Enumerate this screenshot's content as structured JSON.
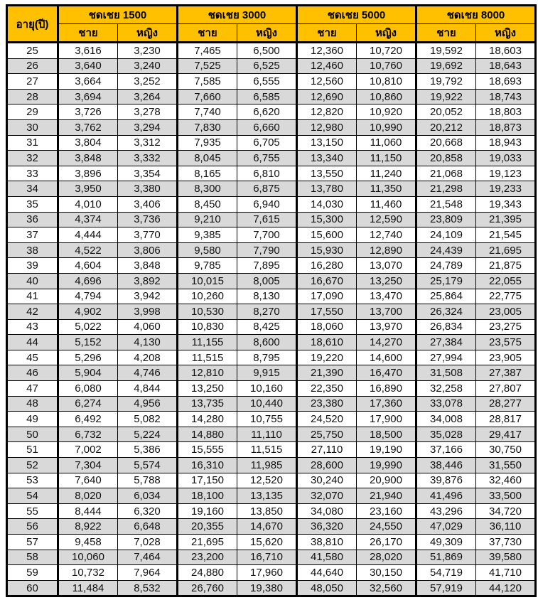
{
  "table": {
    "age_header": "อายุ(ปี)",
    "groups": [
      "ชดเชย 1500",
      "ชดเชย 3000",
      "ชดเชย 5000",
      "ชดเชย 8000"
    ],
    "sub_headers": [
      "ชาย",
      "หญิง"
    ],
    "header_color": "#FFC000",
    "alt_row_color": "#D9D9D9",
    "rows": [
      [
        "25",
        "3,616",
        "3,230",
        "7,465",
        "6,500",
        "12,360",
        "10,720",
        "19,592",
        "18,603"
      ],
      [
        "26",
        "3,640",
        "3,240",
        "7,525",
        "6,525",
        "12,460",
        "10,760",
        "19,692",
        "18,643"
      ],
      [
        "27",
        "3,664",
        "3,252",
        "7,585",
        "6,555",
        "12,560",
        "10,810",
        "19,792",
        "18,693"
      ],
      [
        "28",
        "3,694",
        "3,264",
        "7,660",
        "6,585",
        "12,690",
        "10,860",
        "19,922",
        "18,743"
      ],
      [
        "29",
        "3,726",
        "3,278",
        "7,740",
        "6,620",
        "12,820",
        "10,920",
        "20,052",
        "18,803"
      ],
      [
        "30",
        "3,762",
        "3,294",
        "7,830",
        "6,660",
        "12,980",
        "10,990",
        "20,212",
        "18,873"
      ],
      [
        "31",
        "3,804",
        "3,312",
        "7,935",
        "6,705",
        "13,150",
        "11,060",
        "20,668",
        "18,943"
      ],
      [
        "32",
        "3,848",
        "3,332",
        "8,045",
        "6,755",
        "13,340",
        "11,150",
        "20,858",
        "19,033"
      ],
      [
        "33",
        "3,896",
        "3,354",
        "8,165",
        "6,810",
        "13,550",
        "11,240",
        "21,068",
        "19,123"
      ],
      [
        "34",
        "3,950",
        "3,380",
        "8,300",
        "6,875",
        "13,780",
        "11,350",
        "21,298",
        "19,233"
      ],
      [
        "35",
        "4,010",
        "3,406",
        "8,450",
        "6,940",
        "14,030",
        "11,460",
        "21,548",
        "19,343"
      ],
      [
        "36",
        "4,374",
        "3,736",
        "9,210",
        "7,615",
        "15,300",
        "12,590",
        "23,809",
        "21,395"
      ],
      [
        "37",
        "4,444",
        "3,770",
        "9,385",
        "7,700",
        "15,600",
        "12,740",
        "24,109",
        "21,545"
      ],
      [
        "38",
        "4,522",
        "3,806",
        "9,580",
        "7,790",
        "15,930",
        "12,890",
        "24,439",
        "21,695"
      ],
      [
        "39",
        "4,604",
        "3,848",
        "9,785",
        "7,895",
        "16,280",
        "13,070",
        "24,789",
        "21,875"
      ],
      [
        "40",
        "4,696",
        "3,892",
        "10,015",
        "8,005",
        "16,670",
        "13,250",
        "25,179",
        "22,055"
      ],
      [
        "41",
        "4,794",
        "3,942",
        "10,260",
        "8,130",
        "17,090",
        "13,470",
        "25,864",
        "22,775"
      ],
      [
        "42",
        "4,902",
        "3,998",
        "10,530",
        "8,270",
        "17,550",
        "13,700",
        "26,324",
        "23,005"
      ],
      [
        "43",
        "5,022",
        "4,060",
        "10,830",
        "8,425",
        "18,060",
        "13,970",
        "26,834",
        "23,275"
      ],
      [
        "44",
        "5,152",
        "4,130",
        "11,155",
        "8,600",
        "18,610",
        "14,270",
        "27,384",
        "23,575"
      ],
      [
        "45",
        "5,296",
        "4,208",
        "11,515",
        "8,795",
        "19,220",
        "14,600",
        "27,994",
        "23,905"
      ],
      [
        "46",
        "5,904",
        "4,746",
        "12,810",
        "9,915",
        "21,390",
        "16,470",
        "31,508",
        "27,387"
      ],
      [
        "47",
        "6,080",
        "4,844",
        "13,250",
        "10,160",
        "22,350",
        "16,890",
        "32,258",
        "27,807"
      ],
      [
        "48",
        "6,274",
        "4,956",
        "13,735",
        "10,440",
        "23,380",
        "17,360",
        "33,078",
        "28,277"
      ],
      [
        "49",
        "6,492",
        "5,082",
        "14,280",
        "10,755",
        "24,520",
        "17,900",
        "34,008",
        "28,817"
      ],
      [
        "50",
        "6,732",
        "5,224",
        "14,880",
        "11,110",
        "25,750",
        "18,500",
        "35,028",
        "29,417"
      ],
      [
        "51",
        "7,002",
        "5,386",
        "15,555",
        "11,515",
        "27,110",
        "19,190",
        "37,166",
        "30,750"
      ],
      [
        "52",
        "7,304",
        "5,574",
        "16,310",
        "11,985",
        "28,600",
        "19,990",
        "38,446",
        "31,550"
      ],
      [
        "53",
        "7,640",
        "5,788",
        "17,150",
        "12,520",
        "30,240",
        "20,900",
        "39,876",
        "32,460"
      ],
      [
        "54",
        "8,020",
        "6,034",
        "18,100",
        "13,135",
        "32,070",
        "21,940",
        "41,496",
        "33,500"
      ],
      [
        "55",
        "8,444",
        "6,320",
        "19,160",
        "13,850",
        "34,080",
        "23,160",
        "43,296",
        "34,720"
      ],
      [
        "56",
        "8,922",
        "6,648",
        "20,355",
        "14,670",
        "36,320",
        "24,550",
        "47,029",
        "36,110"
      ],
      [
        "57",
        "9,458",
        "7,028",
        "21,695",
        "15,620",
        "38,810",
        "26,170",
        "49,309",
        "37,730"
      ],
      [
        "58",
        "10,060",
        "7,464",
        "23,200",
        "16,710",
        "41,580",
        "28,020",
        "51,869",
        "39,580"
      ],
      [
        "59",
        "10,732",
        "7,964",
        "24,880",
        "17,960",
        "44,640",
        "30,150",
        "54,719",
        "41,710"
      ],
      [
        "60",
        "11,484",
        "8,532",
        "26,760",
        "19,380",
        "48,050",
        "32,560",
        "57,919",
        "44,120"
      ]
    ]
  }
}
